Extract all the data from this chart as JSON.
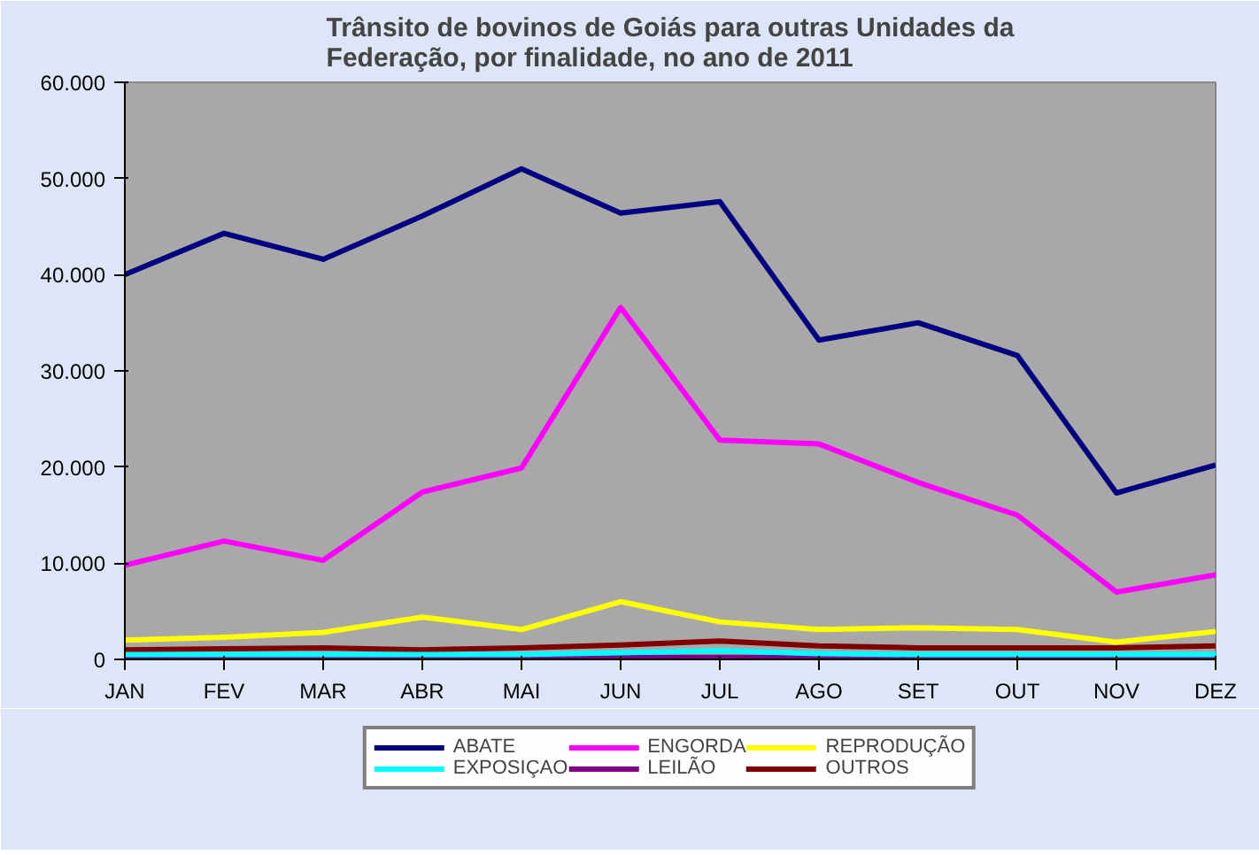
{
  "chart_data": {
    "type": "line",
    "title": "Trânsito de bovinos de Goiás para outras Unidades da\nFederação, por finalidade, no ano de 2011",
    "categories": [
      "JAN",
      "FEV",
      "MAR",
      "ABR",
      "MAI",
      "JUN",
      "JUL",
      "AGO",
      "SET",
      "OUT",
      "NOV",
      "DEZ"
    ],
    "series": [
      {
        "name": "ABATE",
        "color": "#000080",
        "values": [
          40000,
          44300,
          41600,
          46100,
          51000,
          46400,
          47600,
          33200,
          35000,
          31600,
          17300,
          20200
        ]
      },
      {
        "name": "ENGORDA",
        "color": "#ff00ff",
        "values": [
          9800,
          12300,
          10300,
          17400,
          19900,
          36600,
          22800,
          22400,
          18400,
          15000,
          7000,
          8800
        ]
      },
      {
        "name": "REPRODUÇÃO",
        "color": "#ffff00",
        "values": [
          2000,
          2300,
          2800,
          4400,
          3100,
          6000,
          3900,
          3100,
          3300,
          3100,
          1800,
          2900
        ]
      },
      {
        "name": "EXPOSIÇAO",
        "color": "#00ffff",
        "values": [
          500,
          500,
          500,
          500,
          500,
          700,
          900,
          600,
          500,
          500,
          500,
          500
        ]
      },
      {
        "name": "LEILÃO",
        "color": "#800080",
        "values": [
          200,
          200,
          200,
          200,
          200,
          200,
          200,
          200,
          200,
          200,
          200,
          200
        ]
      },
      {
        "name": "OUTROS",
        "color": "#800000",
        "values": [
          1000,
          1100,
          1200,
          1000,
          1200,
          1500,
          1900,
          1400,
          1200,
          1200,
          1200,
          1400
        ]
      }
    ],
    "ylim": [
      0,
      60000
    ],
    "yticks": [
      {
        "value": 0,
        "label": "0"
      },
      {
        "value": 10000,
        "label": "10.000"
      },
      {
        "value": 20000,
        "label": "20.000"
      },
      {
        "value": 30000,
        "label": "30.000"
      },
      {
        "value": 40000,
        "label": "40.000"
      },
      {
        "value": 50000,
        "label": "50.000"
      },
      {
        "value": 60000,
        "label": "60.000"
      }
    ],
    "grid": false,
    "legend": "bottom",
    "marker": "none",
    "line_style": "solid"
  }
}
